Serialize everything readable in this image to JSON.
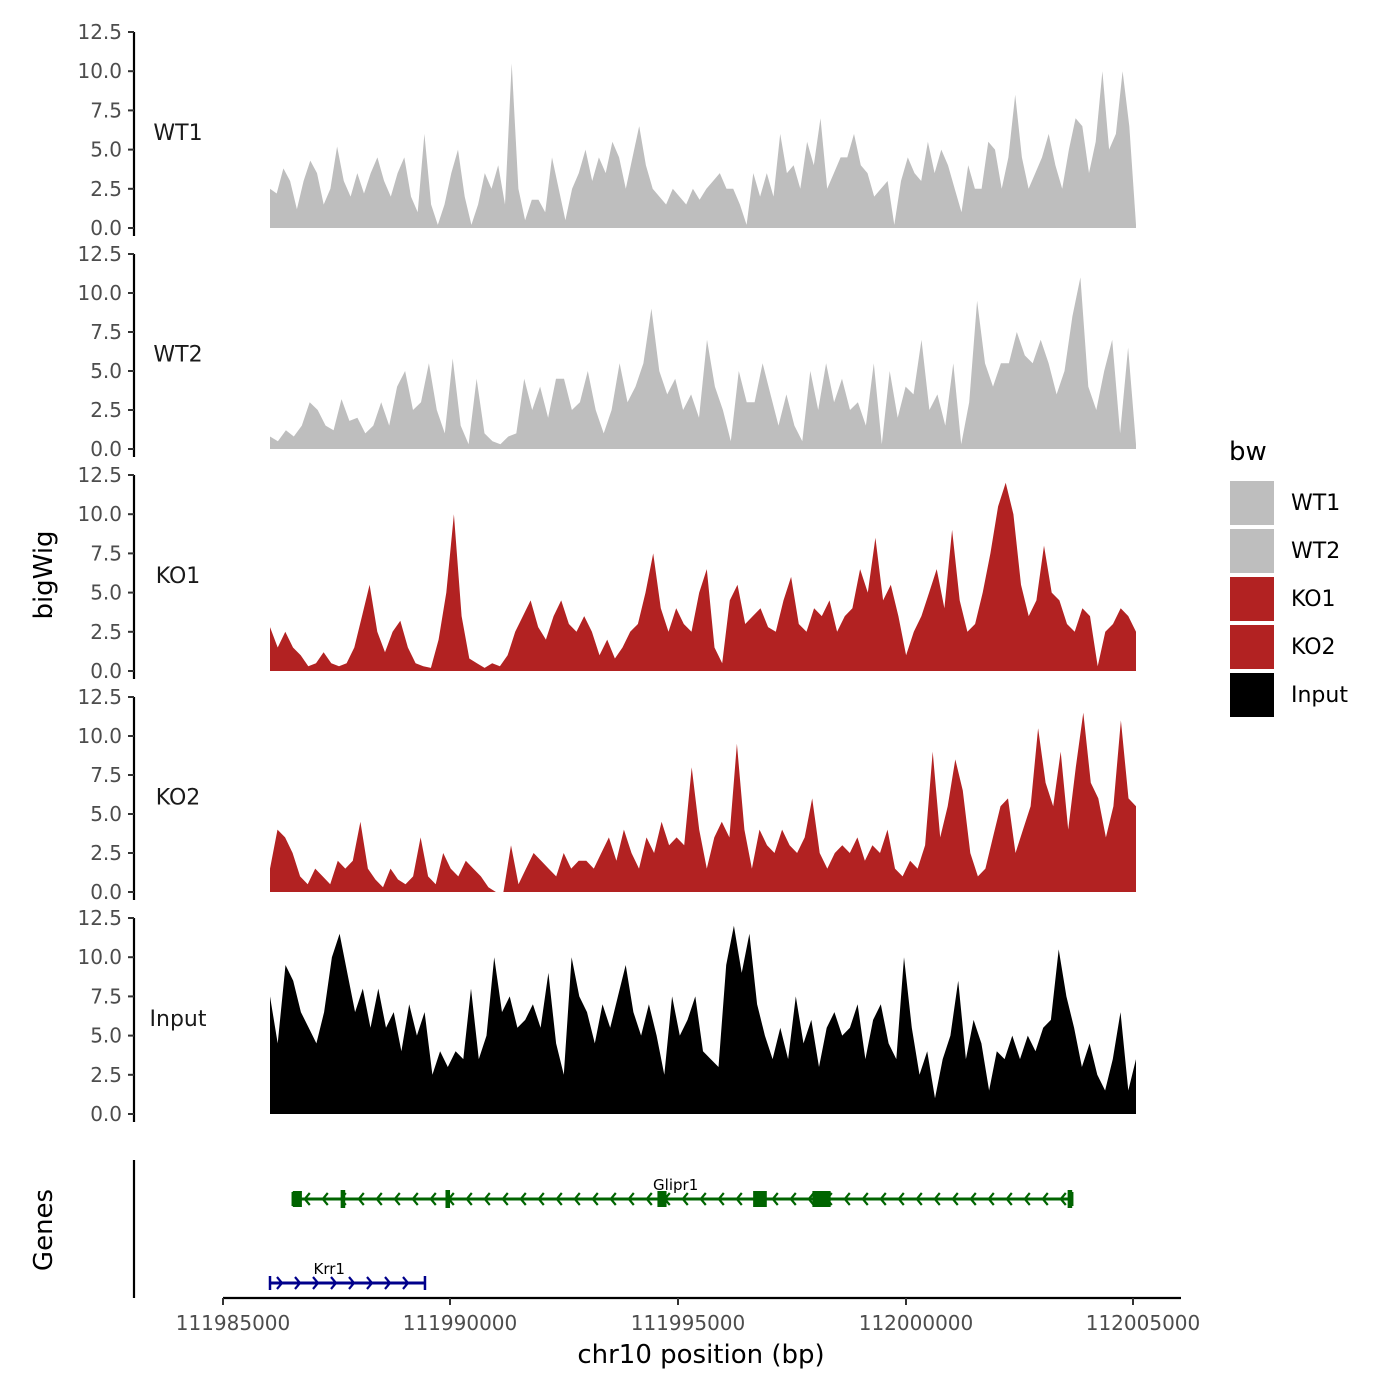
{
  "chart_data": {
    "type": "area",
    "y_axis_title": "bigWig",
    "genes_axis_title": "Genes",
    "x_axis_title": "chr10 position (bp)",
    "xlim": [
      111985000,
      112005000
    ],
    "x_ticks": [
      "111985000",
      "111990000",
      "111995000",
      "112000000",
      "112005000"
    ],
    "y_ticks": [
      "0.0",
      "2.5",
      "5.0",
      "7.5",
      "10.0",
      "12.5"
    ],
    "ylim": [
      0,
      12.5
    ],
    "legend": {
      "title": "bw",
      "items": [
        {
          "label": "WT1",
          "color": "#bebebe"
        },
        {
          "label": "WT2",
          "color": "#bebebe"
        },
        {
          "label": "KO1",
          "color": "#b22222"
        },
        {
          "label": "KO2",
          "color": "#b22222"
        },
        {
          "label": "Input",
          "color": "#000000"
        }
      ]
    },
    "series": [
      {
        "name": "WT1",
        "color": "#bebebe",
        "x_start": 111985000,
        "x_end": 112004000,
        "values": [
          2.5,
          2.2,
          3.8,
          3.0,
          1.2,
          3.0,
          4.3,
          3.5,
          1.5,
          2.5,
          5.2,
          3.0,
          2.0,
          3.5,
          2.2,
          3.5,
          4.5,
          3.0,
          2.0,
          3.5,
          4.5,
          2.0,
          1.0,
          6.0,
          1.5,
          0.2,
          1.5,
          3.5,
          5.0,
          2.0,
          0.2,
          1.5,
          3.5,
          2.5,
          4.0,
          1.5,
          10.5,
          2.5,
          0.5,
          1.8,
          1.8,
          1.0,
          4.5,
          2.5,
          0.5,
          2.5,
          3.5,
          5.0,
          3.0,
          4.5,
          3.5,
          5.5,
          4.5,
          2.5,
          4.5,
          6.5,
          4.0,
          2.5,
          2.0,
          1.5,
          2.5,
          2.0,
          1.5,
          2.5,
          1.8,
          2.5,
          3.0,
          3.5,
          2.5,
          2.5,
          1.5,
          0.2,
          3.5,
          2.0,
          3.5,
          2.0,
          6.0,
          3.5,
          4.0,
          2.5,
          5.5,
          4.0,
          7.0,
          2.5,
          3.5,
          4.5,
          4.5,
          6.0,
          4.0,
          3.5,
          2.0,
          2.5,
          3.0,
          0.2,
          3.0,
          4.5,
          3.5,
          3.0,
          5.5,
          3.5,
          5.0,
          4.0,
          2.5,
          1.0,
          4.0,
          2.5,
          2.5,
          5.5,
          5.0,
          2.5,
          4.5,
          8.5,
          4.5,
          2.5,
          3.5,
          4.5,
          6.0,
          4.0,
          2.5,
          5.0,
          7.0,
          6.5,
          3.5,
          5.5,
          10.0,
          5.0,
          6.0,
          10.0,
          6.5,
          0.2
        ]
      },
      {
        "name": "WT2",
        "color": "#bebebe",
        "x_start": 111985000,
        "x_end": 112004000,
        "values": [
          0.8,
          0.5,
          1.2,
          0.8,
          1.5,
          3.0,
          2.5,
          1.5,
          1.2,
          3.2,
          1.8,
          2.0,
          1.0,
          1.5,
          3.0,
          1.5,
          4.0,
          5.0,
          2.5,
          3.0,
          5.5,
          2.5,
          1.0,
          5.8,
          1.5,
          0.3,
          4.5,
          1.0,
          0.5,
          0.3,
          0.8,
          1.0,
          4.5,
          2.5,
          4.0,
          2.0,
          4.5,
          4.5,
          2.5,
          3.0,
          5.0,
          2.5,
          1.0,
          2.5,
          5.5,
          3.0,
          4.0,
          5.5,
          9.0,
          5.0,
          3.5,
          4.5,
          2.5,
          3.5,
          2.0,
          7.0,
          4.0,
          2.5,
          0.5,
          5.0,
          3.0,
          3.0,
          5.5,
          3.5,
          1.5,
          3.5,
          1.5,
          0.5,
          5.0,
          2.5,
          5.5,
          3.0,
          4.5,
          2.5,
          3.0,
          1.5,
          5.5,
          0.3,
          5.0,
          2.0,
          4.0,
          3.5,
          7.0,
          2.5,
          3.5,
          1.5,
          5.5,
          0.3,
          3.0,
          9.5,
          5.5,
          4.0,
          5.5,
          5.5,
          7.5,
          6.0,
          5.5,
          7.0,
          5.5,
          3.5,
          5.0,
          8.5,
          11.0,
          4.0,
          2.5,
          5.0,
          7.0,
          1.0,
          6.5,
          0.3
        ]
      },
      {
        "name": "KO1",
        "color": "#b22222",
        "x_start": 111985000,
        "x_end": 112004000,
        "values": [
          2.8,
          1.5,
          2.5,
          1.5,
          1.0,
          0.3,
          0.5,
          1.2,
          0.5,
          0.3,
          0.5,
          1.5,
          3.5,
          5.5,
          2.5,
          1.2,
          2.5,
          3.2,
          1.5,
          0.5,
          0.3,
          0.2,
          2.0,
          5.0,
          10.0,
          3.5,
          0.8,
          0.5,
          0.2,
          0.5,
          0.3,
          1.0,
          2.5,
          3.5,
          4.5,
          2.8,
          2.0,
          3.5,
          4.5,
          3.0,
          2.5,
          3.5,
          2.5,
          1.0,
          2.0,
          0.8,
          1.5,
          2.5,
          3.0,
          5.0,
          7.5,
          4.0,
          2.5,
          4.0,
          3.0,
          2.5,
          5.0,
          6.5,
          1.5,
          0.5,
          4.5,
          5.5,
          3.0,
          3.5,
          4.0,
          2.8,
          2.5,
          4.5,
          6.0,
          3.0,
          2.5,
          4.0,
          3.5,
          4.5,
          2.5,
          3.5,
          4.0,
          6.5,
          5.0,
          8.5,
          4.5,
          5.5,
          3.5,
          1.0,
          2.5,
          3.5,
          5.0,
          6.5,
          4.0,
          9.0,
          4.5,
          2.5,
          3.0,
          5.0,
          7.5,
          10.5,
          12.0,
          10.0,
          5.5,
          3.5,
          4.5,
          8.0,
          5.0,
          4.5,
          3.0,
          2.5,
          4.0,
          3.5,
          0.3,
          2.5,
          3.0,
          4.0,
          3.5,
          2.5
        ]
      },
      {
        "name": "KO2",
        "color": "#b22222",
        "x_start": 111985000,
        "x_end": 112004000,
        "values": [
          1.5,
          4.0,
          3.5,
          2.5,
          1.0,
          0.5,
          1.5,
          1.0,
          0.5,
          2.0,
          1.5,
          2.0,
          4.5,
          1.5,
          0.8,
          0.3,
          1.5,
          0.8,
          0.5,
          1.0,
          3.5,
          1.0,
          0.5,
          2.5,
          1.5,
          1.0,
          2.0,
          1.5,
          1.0,
          0.3,
          0.0,
          0.0,
          3.0,
          0.5,
          1.5,
          2.5,
          2.0,
          1.5,
          1.0,
          2.5,
          1.5,
          2.0,
          2.0,
          1.5,
          2.5,
          3.5,
          2.0,
          4.0,
          2.5,
          1.5,
          3.5,
          2.5,
          4.5,
          3.0,
          3.5,
          3.0,
          8.0,
          4.0,
          1.5,
          3.5,
          4.5,
          3.5,
          9.5,
          4.0,
          1.5,
          4.0,
          3.0,
          2.5,
          4.0,
          3.0,
          2.5,
          3.5,
          6.0,
          2.5,
          1.5,
          2.5,
          3.0,
          2.5,
          3.5,
          2.0,
          3.0,
          2.5,
          4.0,
          1.5,
          1.0,
          2.0,
          1.5,
          3.0,
          9.0,
          3.5,
          5.5,
          8.5,
          6.5,
          2.5,
          1.0,
          1.5,
          3.5,
          5.5,
          6.0,
          2.5,
          4.0,
          5.5,
          10.5,
          7.0,
          5.5,
          9.0,
          4.0,
          8.0,
          11.5,
          7.0,
          6.0,
          3.5,
          5.5,
          11.0,
          6.0,
          5.5
        ]
      },
      {
        "name": "Input",
        "color": "#000000",
        "x_start": 111985000,
        "x_end": 112004000,
        "values": [
          7.5,
          4.5,
          9.5,
          8.5,
          6.5,
          5.5,
          4.5,
          6.5,
          10.0,
          11.5,
          9.0,
          6.5,
          8.0,
          5.5,
          8.0,
          5.5,
          6.5,
          4.0,
          7.0,
          5.0,
          6.5,
          2.5,
          4.0,
          3.0,
          4.0,
          3.5,
          8.0,
          3.5,
          5.0,
          10.0,
          6.5,
          7.5,
          5.5,
          6.0,
          7.0,
          5.5,
          9.0,
          4.5,
          2.5,
          10.0,
          7.5,
          6.5,
          4.5,
          7.0,
          5.5,
          7.5,
          9.5,
          6.5,
          5.0,
          7.0,
          5.0,
          2.5,
          7.5,
          5.0,
          6.0,
          7.5,
          4.0,
          3.5,
          3.0,
          9.5,
          12.0,
          9.0,
          11.5,
          7.0,
          5.0,
          3.5,
          5.5,
          3.5,
          7.5,
          4.5,
          6.0,
          3.0,
          5.5,
          6.5,
          5.0,
          5.5,
          7.0,
          3.5,
          6.0,
          7.0,
          4.5,
          3.5,
          10.0,
          5.5,
          2.5,
          4.0,
          1.0,
          3.5,
          5.0,
          8.5,
          3.5,
          6.0,
          4.5,
          1.5,
          4.0,
          3.5,
          5.0,
          3.5,
          5.0,
          4.0,
          5.5,
          6.0,
          10.5,
          7.5,
          5.5,
          3.0,
          4.5,
          2.5,
          1.5,
          3.5,
          6.5,
          1.5,
          3.5
        ]
      }
    ],
    "genes": [
      {
        "name": "Glipr1",
        "strand": "-",
        "color": "#006400",
        "start": 111985500,
        "end": 112002600,
        "exons": [
          {
            "start": 111985500,
            "end": 111985700
          },
          {
            "start": 111986550,
            "end": 111986650
          },
          {
            "start": 111988850,
            "end": 111988950
          },
          {
            "start": 111993500,
            "end": 111993700
          },
          {
            "start": 111995600,
            "end": 111995900
          },
          {
            "start": 111996900,
            "end": 111997300
          },
          {
            "start": 112002500,
            "end": 112002600
          }
        ]
      },
      {
        "name": "Krr1",
        "strand": "+",
        "color": "#00008b",
        "start": 111985000,
        "end": 111988400,
        "exons": []
      }
    ]
  }
}
